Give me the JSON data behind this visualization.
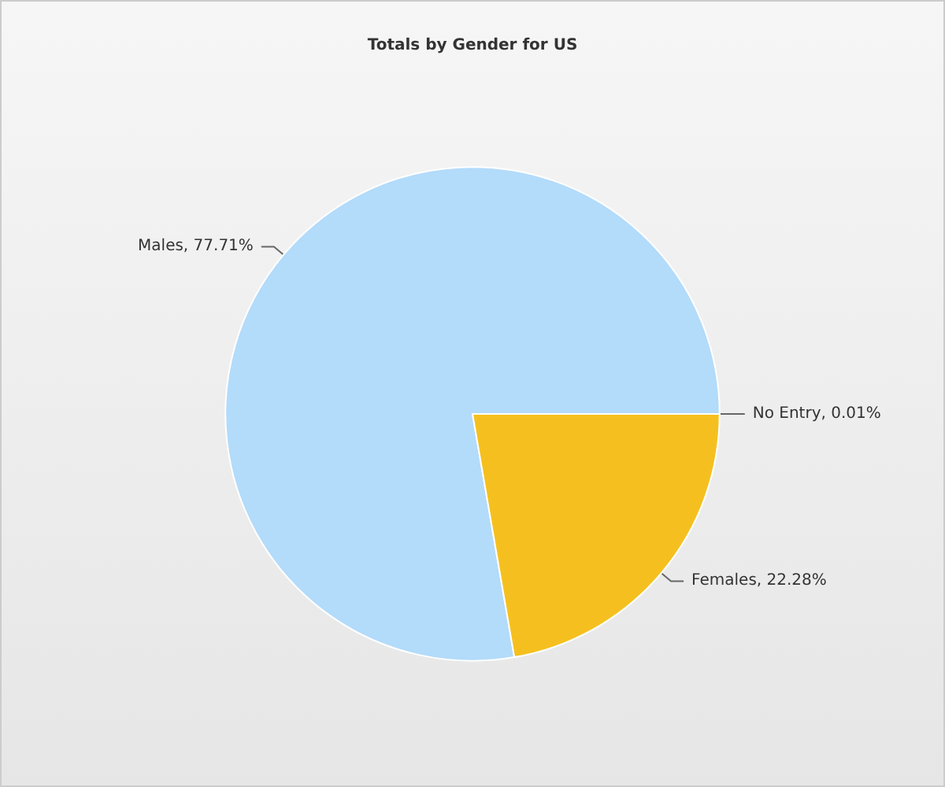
{
  "chart_data": {
    "type": "pie",
    "title": "Totals by Gender for US",
    "categories": [
      "Males",
      "Females",
      "No Entry"
    ],
    "values": [
      77.71,
      22.28,
      0.01
    ],
    "colors": [
      "#b3dbfa",
      "#f5c01f",
      "#8fa8bd"
    ],
    "value_labels": [
      "77.71%",
      "22.28%",
      "0.01%"
    ],
    "legend": false
  }
}
